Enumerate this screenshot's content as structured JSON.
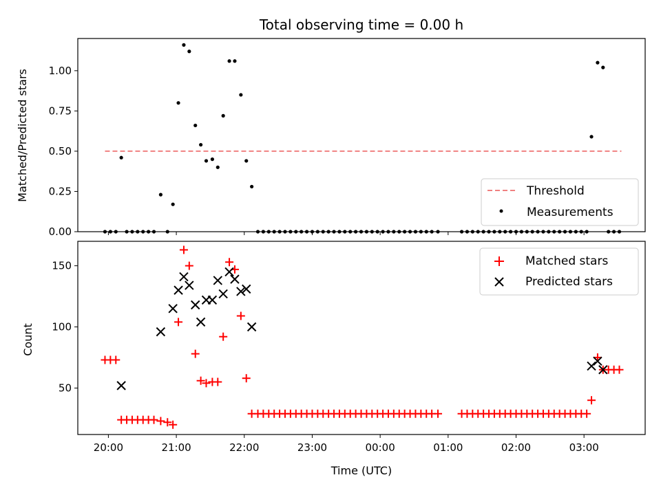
{
  "chart_data": [
    {
      "type": "scatter",
      "title": "Total observing time = 0.00 h",
      "xlabel": "",
      "ylabel": "Matched/Predicted stars",
      "ylim": [
        0,
        1.2
      ],
      "yticks": [
        "0.00",
        "0.25",
        "0.50",
        "0.75",
        "1.00"
      ],
      "xlim": [
        -0.45,
        7.9
      ],
      "grid": false,
      "legend": "bottom-right",
      "threshold": {
        "name": "Threshold",
        "value": 0.5,
        "x": [
          -0.05,
          7.55
        ],
        "color": "#f08080"
      },
      "series": [
        {
          "name": "Measurements",
          "color": "#000000",
          "points": [
            [
              -0.05,
              0
            ],
            [
              0.03,
              0
            ],
            [
              0.11,
              0
            ],
            [
              0.19,
              0.46
            ],
            [
              0.27,
              0
            ],
            [
              0.35,
              0
            ],
            [
              0.43,
              0
            ],
            [
              0.51,
              0
            ],
            [
              0.59,
              0
            ],
            [
              0.67,
              0
            ],
            [
              0.77,
              0.23
            ],
            [
              0.87,
              0
            ],
            [
              0.95,
              0.17
            ],
            [
              1.03,
              0.8
            ],
            [
              1.11,
              1.16
            ],
            [
              1.19,
              1.12
            ],
            [
              1.28,
              0.66
            ],
            [
              1.36,
              0.54
            ],
            [
              1.44,
              0.44
            ],
            [
              1.53,
              0.45
            ],
            [
              1.61,
              0.4
            ],
            [
              1.69,
              0.72
            ],
            [
              1.78,
              1.06
            ],
            [
              1.86,
              1.06
            ],
            [
              1.95,
              0.85
            ],
            [
              2.03,
              0.44
            ],
            [
              2.11,
              0.28
            ],
            [
              2.2,
              0
            ],
            [
              2.28,
              0
            ],
            [
              2.36,
              0
            ],
            [
              2.44,
              0
            ],
            [
              2.52,
              0
            ],
            [
              2.6,
              0
            ],
            [
              2.68,
              0
            ],
            [
              2.76,
              0
            ],
            [
              2.84,
              0
            ],
            [
              2.92,
              0
            ],
            [
              3.0,
              0
            ],
            [
              3.08,
              0
            ],
            [
              3.16,
              0
            ],
            [
              3.24,
              0
            ],
            [
              3.32,
              0
            ],
            [
              3.4,
              0
            ],
            [
              3.48,
              0
            ],
            [
              3.56,
              0
            ],
            [
              3.64,
              0
            ],
            [
              3.72,
              0
            ],
            [
              3.8,
              0
            ],
            [
              3.88,
              0
            ],
            [
              3.96,
              0
            ],
            [
              4.04,
              0
            ],
            [
              4.12,
              0
            ],
            [
              4.2,
              0
            ],
            [
              4.28,
              0
            ],
            [
              4.36,
              0
            ],
            [
              4.44,
              0
            ],
            [
              4.52,
              0
            ],
            [
              4.6,
              0
            ],
            [
              4.68,
              0
            ],
            [
              4.76,
              0
            ],
            [
              4.85,
              0
            ],
            [
              5.2,
              0
            ],
            [
              5.28,
              0
            ],
            [
              5.36,
              0
            ],
            [
              5.44,
              0
            ],
            [
              5.52,
              0
            ],
            [
              5.6,
              0
            ],
            [
              5.68,
              0
            ],
            [
              5.76,
              0
            ],
            [
              5.84,
              0
            ],
            [
              5.92,
              0
            ],
            [
              6.0,
              0
            ],
            [
              6.08,
              0
            ],
            [
              6.16,
              0
            ],
            [
              6.24,
              0
            ],
            [
              6.32,
              0
            ],
            [
              6.4,
              0
            ],
            [
              6.48,
              0
            ],
            [
              6.56,
              0
            ],
            [
              6.64,
              0
            ],
            [
              6.72,
              0
            ],
            [
              6.8,
              0
            ],
            [
              6.88,
              0
            ],
            [
              6.96,
              0
            ],
            [
              7.04,
              0
            ],
            [
              7.11,
              0.59
            ],
            [
              7.2,
              1.05
            ],
            [
              7.28,
              1.02
            ],
            [
              7.36,
              0
            ],
            [
              7.44,
              0
            ],
            [
              7.52,
              0
            ]
          ]
        }
      ]
    },
    {
      "type": "scatter",
      "title": "",
      "xlabel": "Time (UTC)",
      "ylabel": "Count",
      "ylim": [
        12,
        170
      ],
      "yticks": [
        "50",
        "100",
        "150"
      ],
      "xlim": [
        -0.45,
        7.9
      ],
      "xticks": [
        "20:00",
        "21:00",
        "22:00",
        "23:00",
        "00:00",
        "01:00",
        "02:00",
        "03:00"
      ],
      "grid": false,
      "legend": "top-right",
      "series": [
        {
          "name": "Matched stars",
          "color": "#ff0000",
          "marker": "+",
          "points": [
            [
              -0.05,
              73
            ],
            [
              0.03,
              73
            ],
            [
              0.11,
              73
            ],
            [
              0.19,
              24
            ],
            [
              0.27,
              24
            ],
            [
              0.35,
              24
            ],
            [
              0.43,
              24
            ],
            [
              0.51,
              24
            ],
            [
              0.59,
              24
            ],
            [
              0.67,
              24
            ],
            [
              0.77,
              23
            ],
            [
              0.87,
              22
            ],
            [
              0.95,
              20
            ],
            [
              1.03,
              104
            ],
            [
              1.11,
              163
            ],
            [
              1.19,
              150
            ],
            [
              1.28,
              78
            ],
            [
              1.36,
              56
            ],
            [
              1.44,
              54
            ],
            [
              1.53,
              55
            ],
            [
              1.61,
              55
            ],
            [
              1.69,
              92
            ],
            [
              1.78,
              153
            ],
            [
              1.86,
              147
            ],
            [
              1.95,
              109
            ],
            [
              2.03,
              58
            ],
            [
              2.11,
              29
            ],
            [
              2.2,
              29
            ],
            [
              2.28,
              29
            ],
            [
              2.36,
              29
            ],
            [
              2.44,
              29
            ],
            [
              2.52,
              29
            ],
            [
              2.6,
              29
            ],
            [
              2.68,
              29
            ],
            [
              2.76,
              29
            ],
            [
              2.84,
              29
            ],
            [
              2.92,
              29
            ],
            [
              3.0,
              29
            ],
            [
              3.08,
              29
            ],
            [
              3.16,
              29
            ],
            [
              3.24,
              29
            ],
            [
              3.32,
              29
            ],
            [
              3.4,
              29
            ],
            [
              3.48,
              29
            ],
            [
              3.56,
              29
            ],
            [
              3.64,
              29
            ],
            [
              3.72,
              29
            ],
            [
              3.8,
              29
            ],
            [
              3.88,
              29
            ],
            [
              3.96,
              29
            ],
            [
              4.04,
              29
            ],
            [
              4.12,
              29
            ],
            [
              4.2,
              29
            ],
            [
              4.28,
              29
            ],
            [
              4.36,
              29
            ],
            [
              4.44,
              29
            ],
            [
              4.52,
              29
            ],
            [
              4.6,
              29
            ],
            [
              4.68,
              29
            ],
            [
              4.76,
              29
            ],
            [
              4.85,
              29
            ],
            [
              5.2,
              29
            ],
            [
              5.28,
              29
            ],
            [
              5.36,
              29
            ],
            [
              5.44,
              29
            ],
            [
              5.52,
              29
            ],
            [
              5.6,
              29
            ],
            [
              5.68,
              29
            ],
            [
              5.76,
              29
            ],
            [
              5.84,
              29
            ],
            [
              5.92,
              29
            ],
            [
              6.0,
              29
            ],
            [
              6.08,
              29
            ],
            [
              6.16,
              29
            ],
            [
              6.24,
              29
            ],
            [
              6.32,
              29
            ],
            [
              6.4,
              29
            ],
            [
              6.48,
              29
            ],
            [
              6.56,
              29
            ],
            [
              6.64,
              29
            ],
            [
              6.72,
              29
            ],
            [
              6.8,
              29
            ],
            [
              6.88,
              29
            ],
            [
              6.96,
              29
            ],
            [
              7.04,
              29
            ],
            [
              7.11,
              40
            ],
            [
              7.2,
              75
            ],
            [
              7.28,
              65
            ],
            [
              7.36,
              65
            ],
            [
              7.44,
              65
            ],
            [
              7.52,
              65
            ]
          ]
        },
        {
          "name": "Predicted stars",
          "color": "#000000",
          "marker": "x",
          "points": [
            [
              0.19,
              52
            ],
            [
              0.77,
              96
            ],
            [
              0.95,
              115
            ],
            [
              1.03,
              130
            ],
            [
              1.11,
              141
            ],
            [
              1.19,
              134
            ],
            [
              1.28,
              118
            ],
            [
              1.36,
              104
            ],
            [
              1.44,
              122
            ],
            [
              1.53,
              122
            ],
            [
              1.61,
              138
            ],
            [
              1.69,
              127
            ],
            [
              1.78,
              145
            ],
            [
              1.86,
              139
            ],
            [
              1.95,
              129
            ],
            [
              2.03,
              131
            ],
            [
              2.11,
              100
            ],
            [
              7.11,
              68
            ],
            [
              7.2,
              72
            ],
            [
              7.28,
              65
            ]
          ]
        }
      ]
    }
  ]
}
